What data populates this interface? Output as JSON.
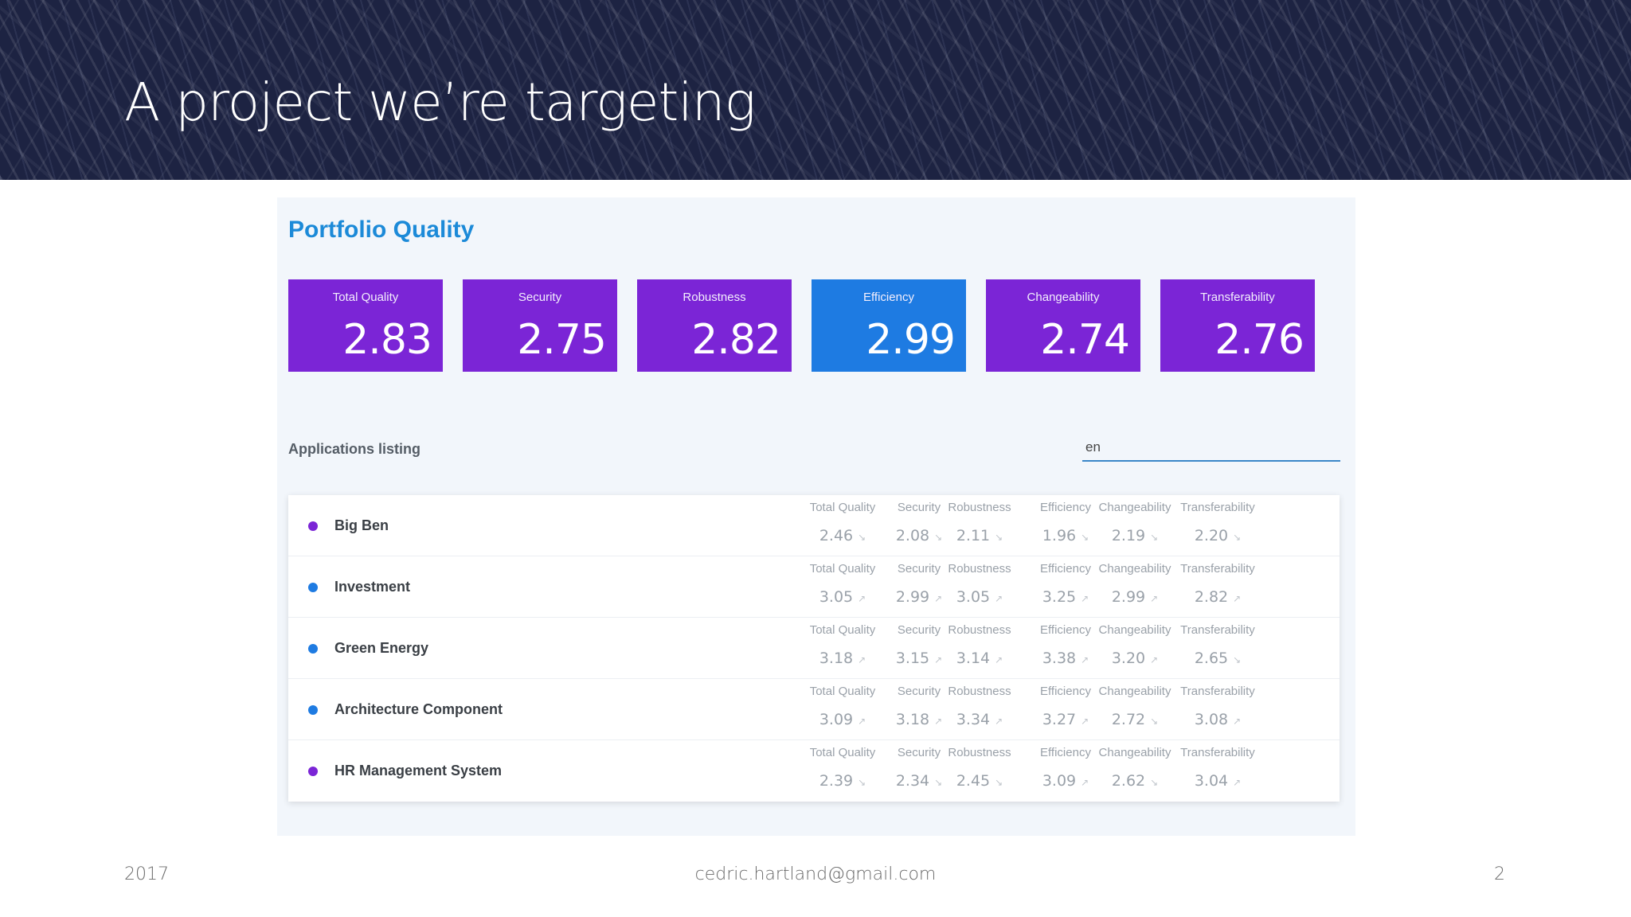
{
  "slide": {
    "title": "A project we’re targeting",
    "footer": {
      "year": "2017",
      "email": "cedric.hartland@gmail.com",
      "page": "2"
    }
  },
  "dashboard": {
    "title": "Portfolio Quality",
    "kpis": [
      {
        "label": "Total Quality",
        "value": "2.83",
        "active": false
      },
      {
        "label": "Security",
        "value": "2.75",
        "active": false
      },
      {
        "label": "Robustness",
        "value": "2.82",
        "active": false
      },
      {
        "label": "Efficiency",
        "value": "2.99",
        "active": true
      },
      {
        "label": "Changeability",
        "value": "2.74",
        "active": false
      },
      {
        "label": "Transferability",
        "value": "2.76",
        "active": false
      }
    ],
    "listing": {
      "label": "Applications listing",
      "search_value": "en",
      "metric_labels": [
        "Total Quality",
        "Security",
        "Robustness",
        "Efficiency",
        "Changeability",
        "Transferability"
      ],
      "apps": [
        {
          "name": "Big Ben",
          "dot_color": "#7b25d6",
          "values": [
            "2.46",
            "2.08",
            "2.11",
            "1.96",
            "2.19",
            "2.20"
          ],
          "trends": [
            "↘",
            "↘",
            "↘",
            "↘",
            "↘",
            "↘"
          ]
        },
        {
          "name": "Investment",
          "dot_color": "#1e7be2",
          "values": [
            "3.05",
            "2.99",
            "3.05",
            "3.25",
            "2.99",
            "2.82"
          ],
          "trends": [
            "↗",
            "↗",
            "↗",
            "↗",
            "↗",
            "↗"
          ]
        },
        {
          "name": "Green Energy",
          "dot_color": "#1e7be2",
          "values": [
            "3.18",
            "3.15",
            "3.14",
            "3.38",
            "3.20",
            "2.65"
          ],
          "trends": [
            "↗",
            "↗",
            "↗",
            "↗",
            "↗",
            "↘"
          ]
        },
        {
          "name": "Architecture Component",
          "dot_color": "#1e7be2",
          "values": [
            "3.09",
            "3.18",
            "3.34",
            "3.27",
            "2.72",
            "3.08"
          ],
          "trends": [
            "↗",
            "↗",
            "↗",
            "↗",
            "↘",
            "↗"
          ]
        },
        {
          "name": "HR Management System",
          "dot_color": "#7b25d6",
          "values": [
            "2.39",
            "2.34",
            "2.45",
            "3.09",
            "2.62",
            "3.04"
          ],
          "trends": [
            "↘",
            "↘",
            "↘",
            "↗",
            "↘",
            "↗"
          ]
        }
      ]
    }
  }
}
